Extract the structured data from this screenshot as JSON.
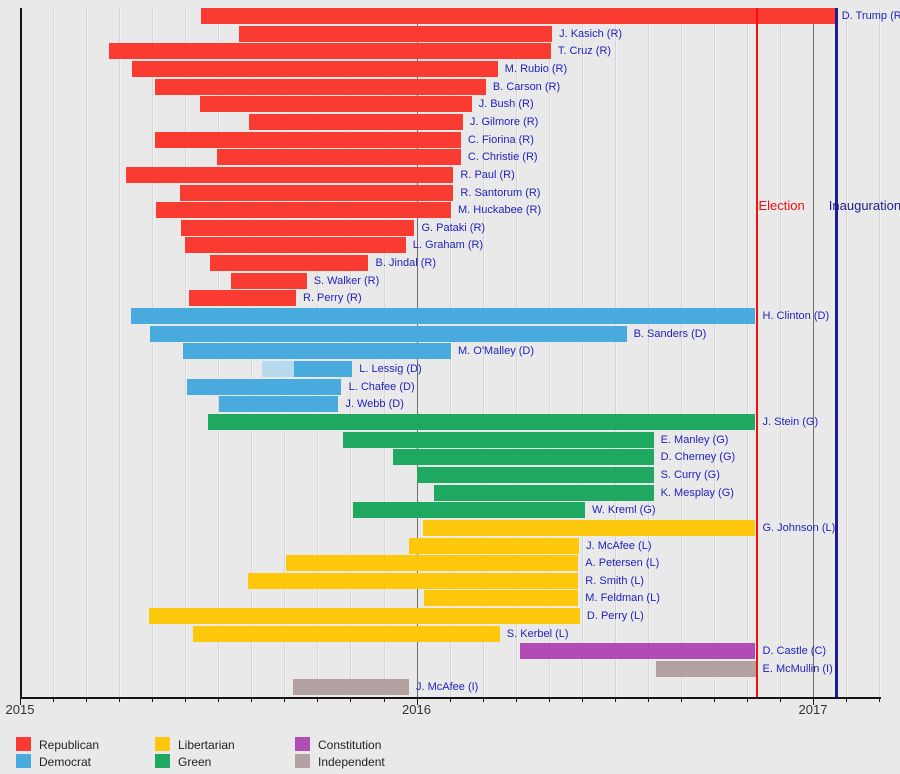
{
  "colors": {
    "background": "#e9e9e9",
    "month_gridline": "#d5d5d5",
    "year_gridline": "#6e6e6e",
    "axis": "#151515",
    "candidate_label": "#2222bd",
    "year_label": "#333333",
    "legend_text": "#222222"
  },
  "chart_data": {
    "type": "bar",
    "subtype": "gantt_timeline",
    "x_axis": {
      "min": 2015.0,
      "max": 2017.17,
      "month_gridlines": true,
      "ticks": [
        {
          "label": "2015",
          "year": 2015
        },
        {
          "label": "2016",
          "year": 2016
        },
        {
          "label": "2017",
          "year": 2017
        }
      ]
    },
    "events": [
      {
        "key": "election",
        "label": "Election",
        "year": 2016.855,
        "color": "#ee1212"
      },
      {
        "key": "inauguration",
        "label": "Inauguration",
        "year": 2017.055,
        "color": "#1d1d8d"
      }
    ],
    "party_colors": {
      "R": "#f93b31",
      "D": "#49aadd",
      "D_light": "#b7d9ee",
      "G": "#1fa85f",
      "L": "#fdc70c",
      "C": "#b14cb5",
      "I": "#b3a1a1"
    },
    "bars": [
      {
        "label": "D. Trump (R)",
        "party": "R",
        "start": 2015.457,
        "end": 2017.055
      },
      {
        "label": "J. Kasich (R)",
        "party": "R",
        "start": 2015.553,
        "end": 2016.342
      },
      {
        "label": "T. Cruz (R)",
        "party": "R",
        "start": 2015.225,
        "end": 2016.339
      },
      {
        "label": "M. Rubio (R)",
        "party": "R",
        "start": 2015.282,
        "end": 2016.205
      },
      {
        "label": "B. Carson (R)",
        "party": "R",
        "start": 2015.34,
        "end": 2016.175
      },
      {
        "label": "J. Bush (R)",
        "party": "R",
        "start": 2015.455,
        "end": 2016.139
      },
      {
        "label": "J. Gilmore (R)",
        "party": "R",
        "start": 2015.578,
        "end": 2016.117
      },
      {
        "label": "C. Fiorina (R)",
        "party": "R",
        "start": 2015.34,
        "end": 2016.112
      },
      {
        "label": "C. Christie (R)",
        "party": "R",
        "start": 2015.496,
        "end": 2016.112
      },
      {
        "label": "R. Paul (R)",
        "party": "R",
        "start": 2015.266,
        "end": 2016.093
      },
      {
        "label": "R. Santorum (R)",
        "party": "R",
        "start": 2015.403,
        "end": 2016.093
      },
      {
        "label": "M. Huckabee (R)",
        "party": "R",
        "start": 2015.342,
        "end": 2016.087
      },
      {
        "label": "G. Pataki (R)",
        "party": "R",
        "start": 2015.405,
        "end": 2015.995
      },
      {
        "label": "L. Graham (R)",
        "party": "R",
        "start": 2015.416,
        "end": 2015.973
      },
      {
        "label": "B. Jindal (R)",
        "party": "R",
        "start": 2015.479,
        "end": 2015.879
      },
      {
        "label": "S. Walker (R)",
        "party": "R",
        "start": 2015.532,
        "end": 2015.723
      },
      {
        "label": "R. Perry (R)",
        "party": "R",
        "start": 2015.425,
        "end": 2015.696
      },
      {
        "label": "H. Clinton (D)",
        "party": "D",
        "start": 2015.279,
        "end": 2016.855
      },
      {
        "label": "B. Sanders (D)",
        "party": "D",
        "start": 2015.329,
        "end": 2016.53
      },
      {
        "label": "M. O'Malley (D)",
        "party": "D",
        "start": 2015.411,
        "end": 2016.087
      },
      {
        "label": "L. Lessig (D)",
        "party": "D",
        "start": 2015.611,
        "solid_from": 2015.69,
        "end": 2015.838
      },
      {
        "label": "L. Chafee (D)",
        "party": "D",
        "start": 2015.422,
        "end": 2015.811
      },
      {
        "label": "J. Webb (D)",
        "party": "D",
        "start": 2015.501,
        "end": 2015.803
      },
      {
        "label": "J. Stein (G)",
        "party": "G",
        "start": 2015.474,
        "end": 2016.855
      },
      {
        "label": "E. Manley (G)",
        "party": "G",
        "start": 2015.815,
        "end": 2016.598
      },
      {
        "label": "D. Cherney (G)",
        "party": "G",
        "start": 2015.94,
        "end": 2016.598
      },
      {
        "label": "S. Curry (G)",
        "party": "G",
        "start": 2016.0,
        "end": 2016.598
      },
      {
        "label": "K. Mesplay (G)",
        "party": "G",
        "start": 2016.045,
        "end": 2016.598
      },
      {
        "label": "W. Kreml (G)",
        "party": "G",
        "start": 2015.84,
        "end": 2016.425
      },
      {
        "label": "G. Johnson (L)",
        "party": "L",
        "start": 2016.016,
        "end": 2016.855
      },
      {
        "label": "J. McAfee (L)",
        "party": "L",
        "start": 2015.981,
        "end": 2016.41
      },
      {
        "label": "A. Petersen (L)",
        "party": "L",
        "start": 2015.67,
        "end": 2016.408
      },
      {
        "label": "R. Smith (L)",
        "party": "L",
        "start": 2015.575,
        "end": 2016.408
      },
      {
        "label": "M. Feldman (L)",
        "party": "L",
        "start": 2016.02,
        "end": 2016.408
      },
      {
        "label": "D. Perry (L)",
        "party": "L",
        "start": 2015.325,
        "end": 2016.412
      },
      {
        "label": "S. Kerbel (L)",
        "party": "L",
        "start": 2015.435,
        "end": 2016.21
      },
      {
        "label": "D. Castle (C)",
        "party": "C",
        "start": 2016.26,
        "end": 2016.855
      },
      {
        "label": "E. McMullin (I)",
        "party": "I",
        "start": 2016.604,
        "end": 2016.855
      },
      {
        "label": "J. McAfee (I)",
        "party": "I",
        "start": 2015.688,
        "end": 2015.981
      }
    ]
  },
  "legend": {
    "items": [
      {
        "label": "Republican",
        "party": "R"
      },
      {
        "label": "Democrat",
        "party": "D"
      },
      {
        "label": "Libertarian",
        "party": "L"
      },
      {
        "label": "Green",
        "party": "G"
      },
      {
        "label": "Constitution",
        "party": "C"
      },
      {
        "label": "Independent",
        "party": "I"
      }
    ]
  }
}
